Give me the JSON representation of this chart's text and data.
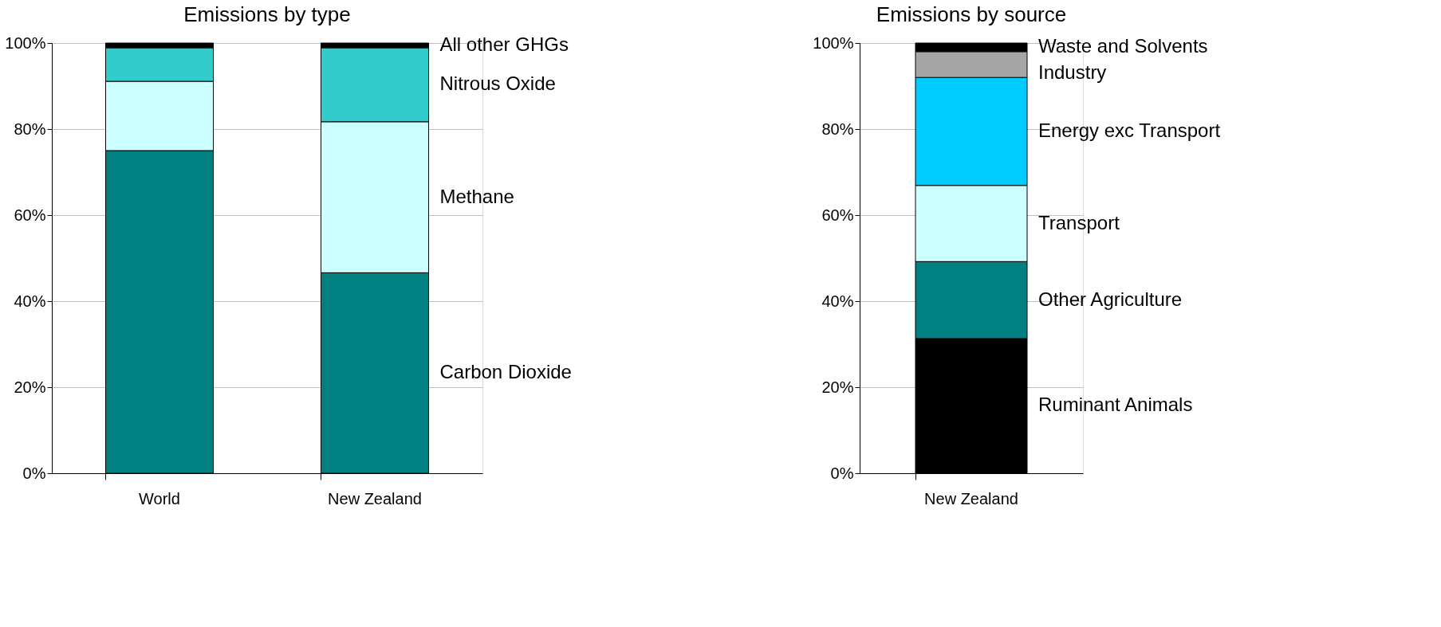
{
  "chart_data": [
    {
      "type": "bar",
      "stacked": true,
      "title": "Emissions by type",
      "categories": [
        "World",
        "New Zealand"
      ],
      "ylim": [
        0,
        100
      ],
      "yticks": [
        {
          "value": 0,
          "label": "0%"
        },
        {
          "value": 20,
          "label": "20%"
        },
        {
          "value": 40,
          "label": "40%"
        },
        {
          "value": 60,
          "label": "60%"
        },
        {
          "value": 80,
          "label": "80%"
        },
        {
          "value": 100,
          "label": "100%"
        }
      ],
      "grid": "y",
      "series": [
        {
          "name": "Carbon Dioxide",
          "color": "#008080",
          "values": [
            75.0,
            46.6
          ]
        },
        {
          "name": "Methane",
          "color": "#ccffff",
          "values": [
            16.1,
            35.1
          ]
        },
        {
          "name": "Nitrous Oxide",
          "color": "#33cccc",
          "values": [
            7.8,
            17.2
          ]
        },
        {
          "name": "All other GHGs",
          "color": "#000000",
          "values": [
            1.1,
            1.1
          ]
        }
      ]
    },
    {
      "type": "bar",
      "stacked": true,
      "title": "Emissions by source",
      "categories": [
        "New Zealand"
      ],
      "ylim": [
        0,
        100
      ],
      "yticks": [
        {
          "value": 0,
          "label": "0%"
        },
        {
          "value": 20,
          "label": "20%"
        },
        {
          "value": 40,
          "label": "40%"
        },
        {
          "value": 60,
          "label": "60%"
        },
        {
          "value": 80,
          "label": "80%"
        },
        {
          "value": 100,
          "label": "100%"
        }
      ],
      "grid": "y",
      "series": [
        {
          "name": "Ruminant Animals",
          "color": "#000000",
          "values": [
            31.3
          ]
        },
        {
          "name": "Other Agriculture",
          "color": "#008080",
          "values": [
            17.9
          ]
        },
        {
          "name": "Transport",
          "color": "#ccffff",
          "values": [
            17.7
          ]
        },
        {
          "name": "Energy exc Transport",
          "color": "#00ccff",
          "values": [
            25.1
          ]
        },
        {
          "name": "Industry",
          "color": "#a6a6a6",
          "values": [
            6.0
          ]
        },
        {
          "name": "Waste and Solvents",
          "color": "#000000",
          "values": [
            2.0
          ]
        }
      ]
    }
  ]
}
